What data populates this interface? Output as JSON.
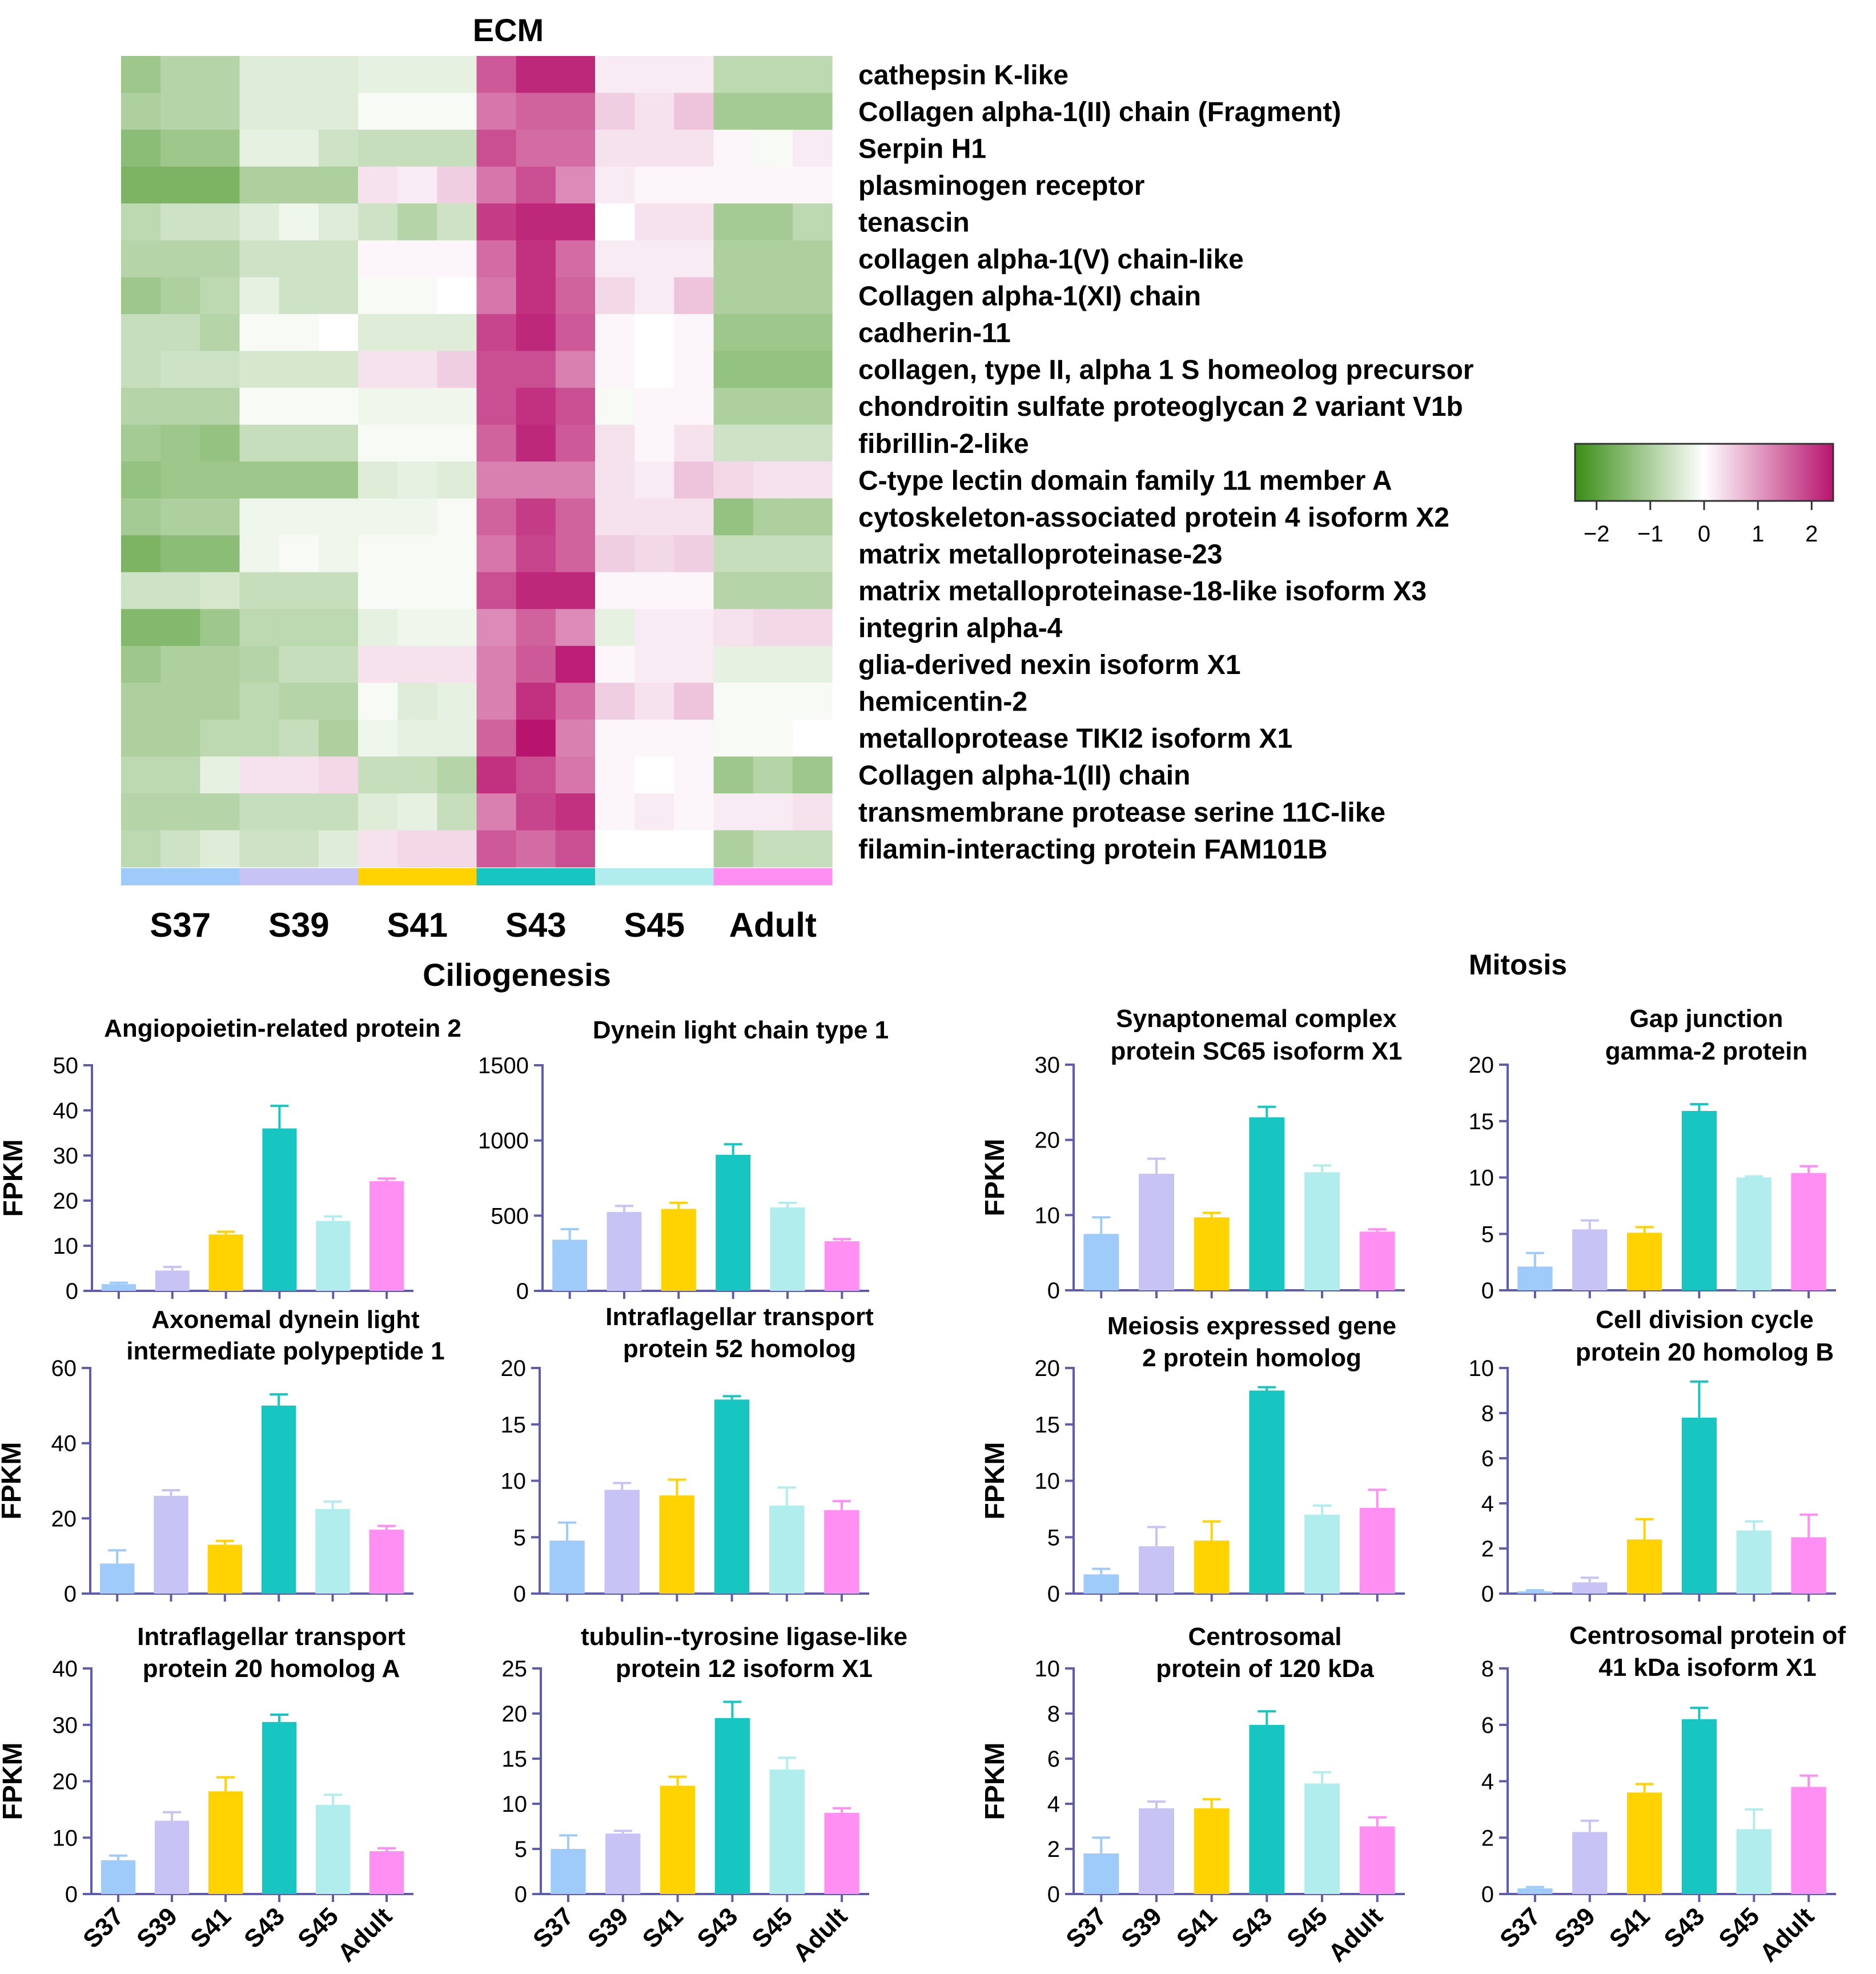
{
  "figure": {
    "stages": [
      "S37",
      "S39",
      "S41",
      "S43",
      "S45",
      "Adult"
    ],
    "stage_colors": [
      "#9ECBFA",
      "#C7C4F5",
      "#FFD200",
      "#17C6C0",
      "#B2EDEE",
      "#FF8FF3"
    ],
    "y_axis_label": "FPKM",
    "sections": {
      "ciliogenesis": "Ciliogenesis",
      "mitosis": "Mitosis"
    }
  },
  "chart_data": [
    {
      "type": "heatmap",
      "title": "ECM",
      "columns": [
        "S37",
        "S37",
        "S37",
        "S39",
        "S39",
        "S39",
        "S41",
        "S41",
        "S41",
        "S43",
        "S43",
        "S43",
        "S45",
        "S45",
        "S45",
        "Adult",
        "Adult",
        "Adult"
      ],
      "column_groups": [
        "S37",
        "S39",
        "S41",
        "S43",
        "S45",
        "Adult"
      ],
      "rows": [
        "cathepsin K-like",
        "Collagen alpha-1(II) chain (Fragment)",
        "Serpin H1",
        "plasminogen receptor",
        "tenascin",
        "collagen alpha-1(V) chain-like",
        "Collagen alpha-1(XI) chain",
        "cadherin-11",
        "collagen, type II, alpha 1 S homeolog precursor",
        "chondroitin sulfate proteoglycan 2 variant V1b",
        "fibrillin-2-like",
        "C-type lectin domain family 11 member A",
        "cytoskeleton-associated protein 4 isoform X2",
        "matrix metalloproteinase-23",
        "matrix metalloproteinase-18-like isoform X3",
        "integrin alpha-4",
        "glia-derived nexin isoform X1",
        "hemicentin-2",
        "metalloprotease TIKI2 isoform X1",
        "Collagen alpha-1(II) chain",
        "transmembrane protease serine 11C-like",
        "filamin-interacting protein FAM101B"
      ],
      "values": [
        [
          -1.2,
          -0.9,
          -0.9,
          -0.4,
          -0.4,
          -0.4,
          -0.3,
          -0.3,
          -0.3,
          1.7,
          2.2,
          2.2,
          0.2,
          0.2,
          0.2,
          -0.8,
          -0.8,
          -0.8
        ],
        [
          -1.0,
          -0.9,
          -0.9,
          -0.4,
          -0.4,
          -0.4,
          -0.1,
          -0.1,
          -0.1,
          1.4,
          1.6,
          1.6,
          0.5,
          0.3,
          0.6,
          -1.1,
          -1.1,
          -1.1
        ],
        [
          -1.4,
          -1.2,
          -1.2,
          -0.3,
          -0.3,
          -0.6,
          -0.7,
          -0.7,
          -0.7,
          1.8,
          1.5,
          1.5,
          0.3,
          0.3,
          0.3,
          0.1,
          -0.1,
          0.2
        ],
        [
          -1.6,
          -1.6,
          -1.6,
          -1.0,
          -1.0,
          -1.0,
          0.3,
          0.2,
          0.5,
          1.4,
          1.8,
          1.2,
          0.2,
          0.1,
          0.1,
          0.1,
          0.1,
          0.1
        ],
        [
          -0.8,
          -0.6,
          -0.6,
          -0.4,
          -0.2,
          -0.4,
          -0.6,
          -0.9,
          -0.6,
          2.0,
          2.2,
          2.2,
          0.0,
          0.3,
          0.3,
          -1.1,
          -1.1,
          -0.8
        ],
        [
          -0.9,
          -0.9,
          -0.9,
          -0.6,
          -0.6,
          -0.6,
          0.1,
          0.1,
          0.1,
          1.5,
          2.1,
          1.5,
          0.2,
          0.2,
          0.2,
          -1.0,
          -1.0,
          -1.0
        ],
        [
          -1.2,
          -1.0,
          -0.8,
          -0.3,
          -0.6,
          -0.6,
          -0.1,
          -0.1,
          0.0,
          1.4,
          2.1,
          1.6,
          0.4,
          0.2,
          0.6,
          -1.0,
          -1.0,
          -1.0
        ],
        [
          -0.7,
          -0.7,
          -0.9,
          -0.1,
          -0.1,
          0.0,
          -0.4,
          -0.4,
          -0.4,
          1.9,
          2.2,
          1.7,
          0.1,
          0.0,
          0.1,
          -1.2,
          -1.2,
          -1.2
        ],
        [
          -0.7,
          -0.6,
          -0.6,
          -0.5,
          -0.5,
          -0.5,
          0.3,
          0.3,
          0.5,
          1.8,
          1.8,
          1.3,
          0.1,
          0.0,
          0.1,
          -1.3,
          -1.3,
          -1.3
        ],
        [
          -0.9,
          -0.9,
          -0.9,
          -0.1,
          -0.1,
          -0.1,
          -0.2,
          -0.2,
          -0.2,
          1.8,
          2.1,
          1.8,
          -0.1,
          0.1,
          0.1,
          -1.0,
          -1.0,
          -1.0
        ],
        [
          -1.1,
          -1.2,
          -1.3,
          -0.7,
          -0.7,
          -0.7,
          -0.1,
          -0.1,
          -0.1,
          1.6,
          2.2,
          1.7,
          0.3,
          0.1,
          0.3,
          -0.6,
          -0.6,
          -0.6
        ],
        [
          -1.3,
          -1.2,
          -1.2,
          -1.2,
          -1.2,
          -1.2,
          -0.4,
          -0.3,
          -0.4,
          1.3,
          1.3,
          1.3,
          0.3,
          0.2,
          0.6,
          0.4,
          0.3,
          0.3
        ],
        [
          -1.1,
          -1.0,
          -1.0,
          -0.2,
          -0.2,
          -0.2,
          -0.2,
          -0.2,
          -0.1,
          1.6,
          2.0,
          1.6,
          0.3,
          0.3,
          0.3,
          -1.3,
          -1.0,
          -1.0
        ],
        [
          -1.6,
          -1.4,
          -1.4,
          -0.2,
          -0.1,
          -0.2,
          -0.1,
          -0.1,
          -0.1,
          1.4,
          1.9,
          1.6,
          0.5,
          0.4,
          0.5,
          -0.7,
          -0.7,
          -0.7
        ],
        [
          -0.6,
          -0.6,
          -0.5,
          -0.7,
          -0.7,
          -0.7,
          -0.1,
          -0.1,
          -0.1,
          1.8,
          2.2,
          2.2,
          0.1,
          0.1,
          0.1,
          -0.9,
          -0.9,
          -0.9
        ],
        [
          -1.5,
          -1.5,
          -1.2,
          -0.8,
          -0.8,
          -0.8,
          -0.3,
          -0.2,
          -0.2,
          1.2,
          1.6,
          1.2,
          -0.3,
          0.2,
          0.2,
          0.3,
          0.4,
          0.4
        ],
        [
          -1.2,
          -1.0,
          -1.0,
          -0.9,
          -0.7,
          -0.7,
          0.3,
          0.3,
          0.3,
          1.3,
          1.7,
          2.3,
          0.1,
          0.2,
          0.2,
          -0.3,
          -0.3,
          -0.3
        ],
        [
          -1.0,
          -1.0,
          -1.0,
          -0.8,
          -0.9,
          -0.9,
          -0.1,
          -0.4,
          -0.3,
          1.3,
          2.1,
          1.5,
          0.5,
          0.3,
          0.6,
          -0.1,
          -0.1,
          -0.1
        ],
        [
          -1.0,
          -1.0,
          -0.8,
          -0.8,
          -0.7,
          -1.0,
          -0.2,
          -0.3,
          -0.3,
          1.6,
          2.4,
          1.3,
          0.1,
          0.1,
          0.1,
          -0.1,
          -0.1,
          0.0
        ],
        [
          -0.8,
          -0.8,
          -0.3,
          0.3,
          0.3,
          0.4,
          -0.7,
          -0.7,
          -0.9,
          2.1,
          1.8,
          1.4,
          0.1,
          0.0,
          0.1,
          -1.2,
          -0.9,
          -1.2
        ],
        [
          -0.9,
          -0.9,
          -0.9,
          -0.7,
          -0.7,
          -0.7,
          -0.4,
          -0.3,
          -0.7,
          1.3,
          1.9,
          2.1,
          0.1,
          0.2,
          0.1,
          0.2,
          0.2,
          0.3
        ],
        [
          -0.8,
          -0.6,
          -0.4,
          -0.6,
          -0.6,
          -0.4,
          0.3,
          0.4,
          0.4,
          1.7,
          1.5,
          1.8,
          0.0,
          0.0,
          0.0,
          -1.0,
          -0.7,
          -0.7
        ]
      ],
      "colorbar": {
        "ticks": [
          -2,
          -1,
          0,
          1,
          2
        ],
        "tick_labels": [
          "−2",
          "−1",
          "0",
          "1",
          "2"
        ],
        "range": [
          -2.4,
          2.4
        ],
        "low_color": "#3A8E16",
        "mid_color": "#FFFFFF",
        "high_color": "#B8146E"
      }
    },
    {
      "type": "bar",
      "panel": "cilio-1",
      "title": [
        "Angiopoietin-related protein 2"
      ],
      "ylabel": "FPKM",
      "categories": [
        "S37",
        "S39",
        "S41",
        "S43",
        "S45",
        "Adult"
      ],
      "values": [
        1.5,
        4.5,
        12.5,
        36,
        15.5,
        24.3
      ],
      "errors": [
        0.3,
        0.8,
        0.6,
        5,
        1,
        0.6
      ],
      "yticks": [
        0,
        10,
        20,
        30,
        40,
        50
      ],
      "ylim": [
        0,
        50
      ]
    },
    {
      "type": "bar",
      "panel": "cilio-2",
      "title": [
        "Dynein light chain type 1"
      ],
      "ylabel": "",
      "categories": [
        "S37",
        "S39",
        "S41",
        "S43",
        "S45",
        "Adult"
      ],
      "values": [
        340,
        525,
        545,
        905,
        555,
        330
      ],
      "errors": [
        70,
        40,
        40,
        70,
        30,
        15
      ],
      "yticks": [
        0,
        500,
        1000,
        1500
      ],
      "ylim": [
        0,
        1500
      ]
    },
    {
      "type": "bar",
      "panel": "cilio-3",
      "title": [
        "Axonemal dynein light",
        "intermediate polypeptide 1"
      ],
      "ylabel": "FPKM",
      "categories": [
        "S37",
        "S39",
        "S41",
        "S43",
        "S45",
        "Adult"
      ],
      "values": [
        8,
        26,
        13,
        50,
        22.5,
        17
      ],
      "errors": [
        3.5,
        1.5,
        1,
        3,
        2,
        1
      ],
      "yticks": [
        0,
        20,
        40,
        60
      ],
      "ylim": [
        0,
        60
      ]
    },
    {
      "type": "bar",
      "panel": "cilio-4",
      "title": [
        "Intraflagellar transport",
        "protein 52 homolog"
      ],
      "ylabel": "",
      "categories": [
        "S37",
        "S39",
        "S41",
        "S43",
        "S45",
        "Adult"
      ],
      "values": [
        4.7,
        9.2,
        8.7,
        17.2,
        7.8,
        7.4
      ],
      "errors": [
        1.6,
        0.6,
        1.4,
        0.3,
        1.6,
        0.8
      ],
      "yticks": [
        0,
        5,
        10,
        15,
        20
      ],
      "ylim": [
        0,
        20
      ]
    },
    {
      "type": "bar",
      "panel": "cilio-5",
      "title": [
        "Intraflagellar transport",
        "protein 20 homolog A"
      ],
      "ylabel": "FPKM",
      "categories": [
        "S37",
        "S39",
        "S41",
        "S43",
        "S45",
        "Adult"
      ],
      "values": [
        6,
        13,
        18.2,
        30.5,
        15.8,
        7.6
      ],
      "errors": [
        0.8,
        1.5,
        2.5,
        1.3,
        1.8,
        0.5
      ],
      "yticks": [
        0,
        10,
        20,
        30,
        40
      ],
      "ylim": [
        0,
        40
      ]
    },
    {
      "type": "bar",
      "panel": "cilio-6",
      "title": [
        "tubulin--tyrosine ligase-like",
        "protein 12 isoform X1"
      ],
      "ylabel": "",
      "categories": [
        "S37",
        "S39",
        "S41",
        "S43",
        "S45",
        "Adult"
      ],
      "values": [
        5,
        6.7,
        12,
        19.5,
        13.8,
        9
      ],
      "errors": [
        1.5,
        0.3,
        1,
        1.8,
        1.3,
        0.5
      ],
      "yticks": [
        0,
        5,
        10,
        15,
        20,
        25
      ],
      "ylim": [
        0,
        25
      ]
    },
    {
      "type": "bar",
      "panel": "mito-1",
      "title": [
        "Synaptonemal complex",
        "protein  SC65 isoform X1"
      ],
      "ylabel": "FPKM",
      "categories": [
        "S37",
        "S39",
        "S41",
        "S43",
        "S45",
        "Adult"
      ],
      "values": [
        7.5,
        15.5,
        9.7,
        23,
        15.7,
        7.8
      ],
      "errors": [
        2.2,
        2,
        0.6,
        1.4,
        0.9,
        0.3
      ],
      "yticks": [
        0,
        10,
        20,
        30
      ],
      "ylim": [
        0,
        30
      ]
    },
    {
      "type": "bar",
      "panel": "mito-2",
      "title": [
        "Gap junction",
        "gamma-2 protein"
      ],
      "ylabel": "",
      "categories": [
        "S37",
        "S39",
        "S41",
        "S43",
        "S45",
        "Adult"
      ],
      "values": [
        2.1,
        5.4,
        5.1,
        15.9,
        10,
        10.4
      ],
      "errors": [
        1.2,
        0.8,
        0.5,
        0.6,
        0.1,
        0.6
      ],
      "yticks": [
        0,
        5,
        10,
        15,
        20
      ],
      "ylim": [
        0,
        20
      ]
    },
    {
      "type": "bar",
      "panel": "mito-3",
      "title": [
        "Meiosis expressed gene",
        "2 protein homolog"
      ],
      "ylabel": "FPKM",
      "categories": [
        "S37",
        "S39",
        "S41",
        "S43",
        "S45",
        "Adult"
      ],
      "values": [
        1.7,
        4.2,
        4.7,
        18,
        7,
        7.6
      ],
      "errors": [
        0.5,
        1.7,
        1.7,
        0.3,
        0.8,
        1.6
      ],
      "yticks": [
        0,
        5,
        10,
        15,
        20
      ],
      "ylim": [
        0,
        20
      ]
    },
    {
      "type": "bar",
      "panel": "mito-4",
      "title": [
        "Cell division cycle",
        "protein 20 homolog B"
      ],
      "ylabel": "",
      "categories": [
        "S37",
        "S39",
        "S41",
        "S43",
        "S45",
        "Adult"
      ],
      "values": [
        0.1,
        0.5,
        2.4,
        7.8,
        2.8,
        2.5
      ],
      "errors": [
        0.05,
        0.2,
        0.9,
        1.6,
        0.4,
        1
      ],
      "yticks": [
        0,
        2,
        4,
        6,
        8,
        10
      ],
      "ylim": [
        0,
        10
      ]
    },
    {
      "type": "bar",
      "panel": "mito-5",
      "title": [
        "Centrosomal",
        "protein of 120 kDa"
      ],
      "ylabel": "FPKM",
      "categories": [
        "S37",
        "S39",
        "S41",
        "S43",
        "S45",
        "Adult"
      ],
      "values": [
        1.8,
        3.8,
        3.8,
        7.5,
        4.9,
        3
      ],
      "errors": [
        0.7,
        0.3,
        0.4,
        0.6,
        0.5,
        0.4
      ],
      "yticks": [
        0,
        2,
        4,
        6,
        8,
        10
      ],
      "ylim": [
        0,
        10
      ]
    },
    {
      "type": "bar",
      "panel": "mito-6",
      "title": [
        "Centrosomal protein of",
        "41 kDa isoform X1"
      ],
      "ylabel": "",
      "categories": [
        "S37",
        "S39",
        "S41",
        "S43",
        "S45",
        "Adult"
      ],
      "values": [
        0.2,
        2.2,
        3.6,
        6.2,
        2.3,
        3.8
      ],
      "errors": [
        0.05,
        0.4,
        0.3,
        0.4,
        0.7,
        0.4
      ],
      "yticks": [
        0,
        2,
        4,
        6,
        8
      ],
      "ylim": [
        0,
        8
      ]
    }
  ]
}
